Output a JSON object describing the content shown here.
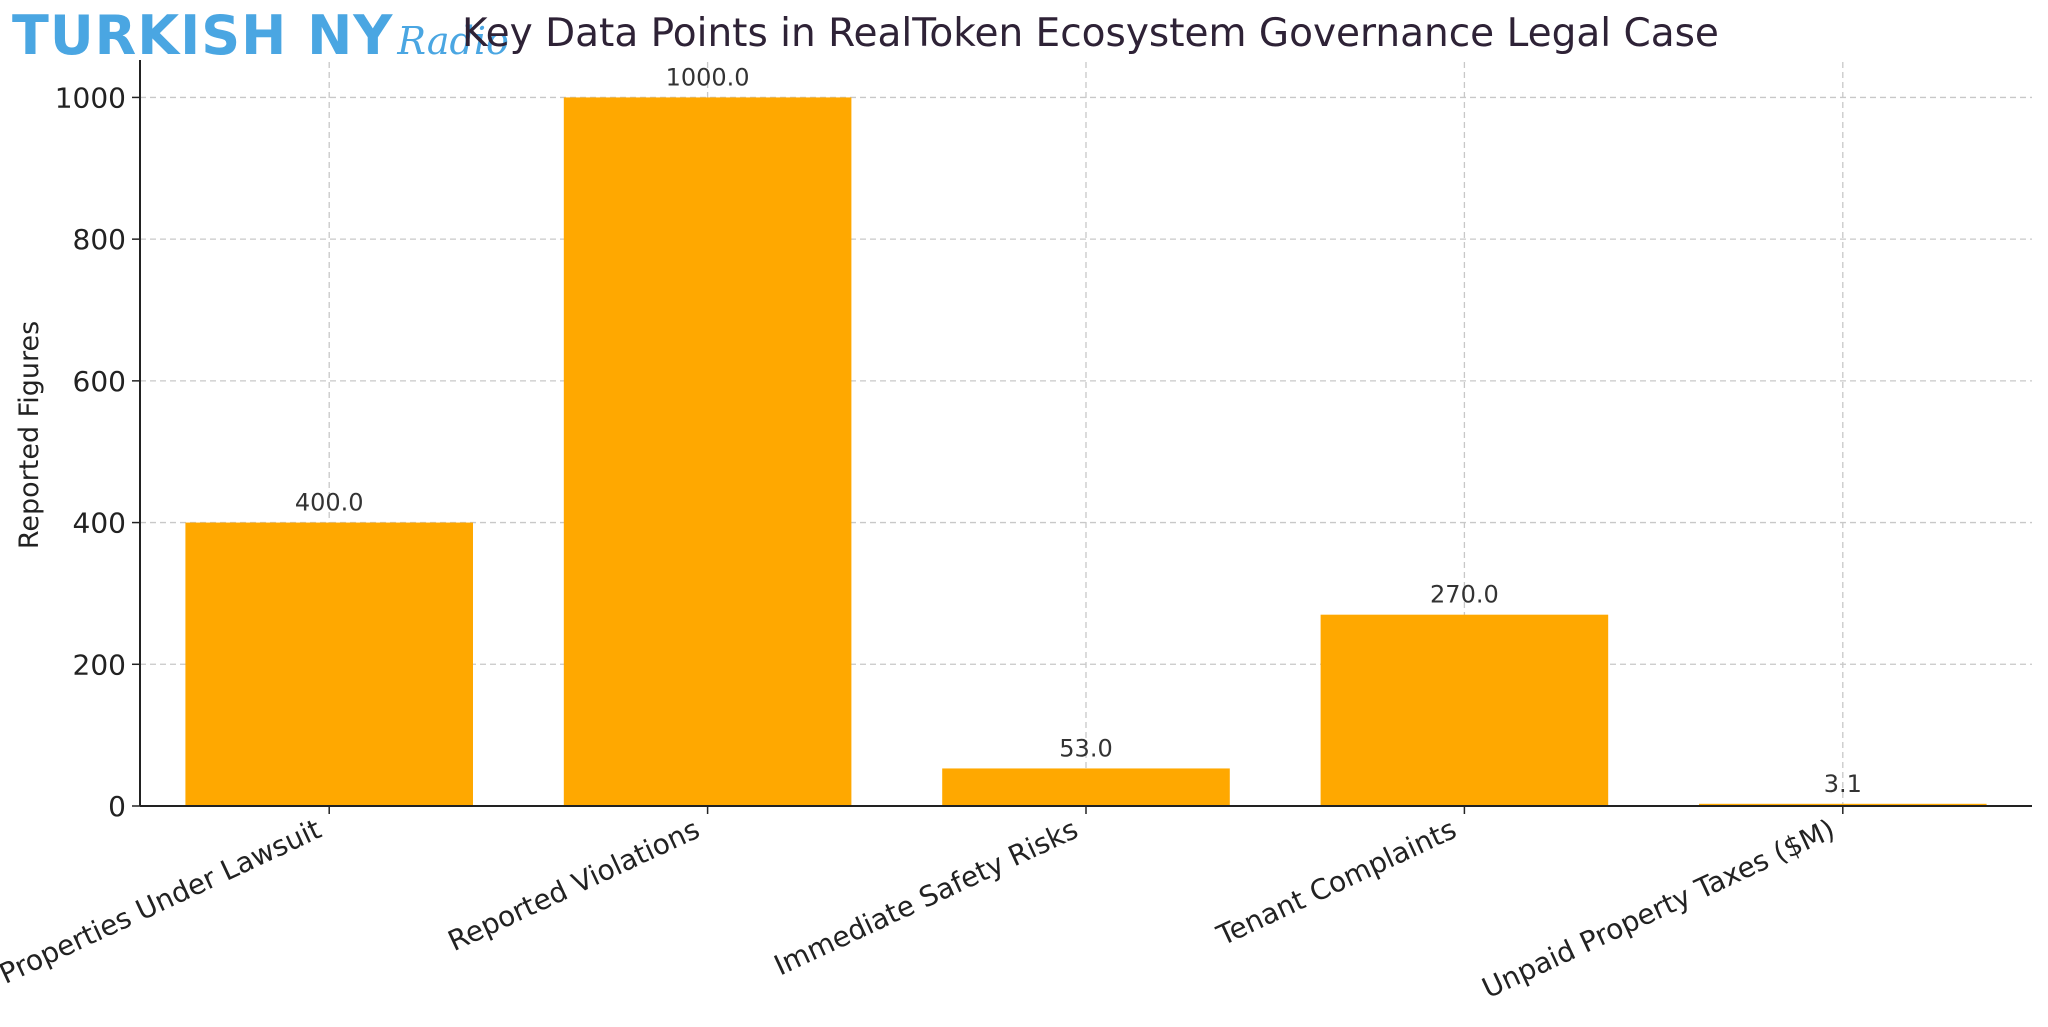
{
  "logo": {
    "main": "TURKISH NY",
    "script": "Radio"
  },
  "colors": {
    "bar": "#FFA800",
    "grid": "#c8c8c8",
    "axis": "#222222",
    "text": "#222222",
    "logo": "#4aa6e2"
  },
  "chart_data": {
    "type": "bar",
    "title": "Key Data Points in RealToken Ecosystem Governance Legal Case",
    "xlabel": "",
    "ylabel": "Reported Figures",
    "categories": [
      "Properties Under Lawsuit",
      "Reported Violations",
      "Immediate Safety Risks",
      "Tenant Complaints",
      "Unpaid Property Taxes ($M)"
    ],
    "values": [
      400.0,
      1000.0,
      53.0,
      270.0,
      3.1
    ],
    "data_labels": [
      "400.0",
      "1000.0",
      "53.0",
      "270.0",
      "3.1"
    ],
    "ylim": [
      0,
      1050
    ],
    "yticks": [
      0,
      200,
      400,
      600,
      800,
      1000
    ],
    "grid": true
  }
}
